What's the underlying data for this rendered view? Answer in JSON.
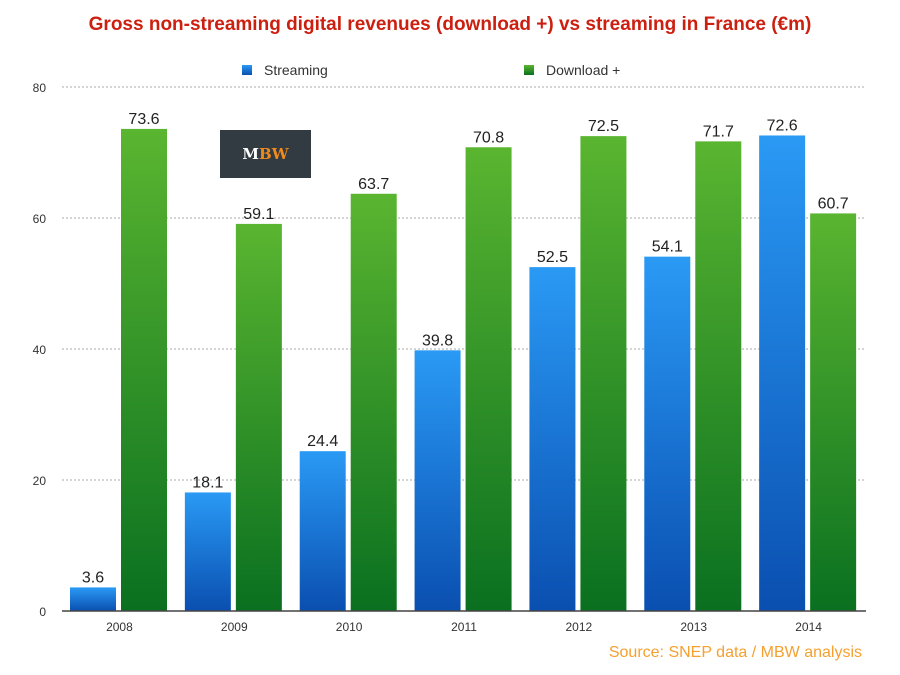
{
  "chart_data": {
    "type": "bar",
    "title": "Gross non-streaming digital revenues (download +) vs streaming in France (€m)",
    "categories": [
      "2008",
      "2009",
      "2010",
      "2011",
      "2012",
      "2013",
      "2014"
    ],
    "series": [
      {
        "name": "Streaming",
        "values": [
          3.6,
          18.1,
          24.4,
          39.8,
          52.5,
          54.1,
          72.6
        ],
        "color": "#1a7ae0"
      },
      {
        "name": "Download +",
        "values": [
          73.6,
          59.1,
          63.7,
          70.8,
          72.5,
          71.7,
          60.7
        ],
        "color": "#2f9a28"
      }
    ],
    "ylim": [
      0,
      80
    ],
    "yticks": [
      0,
      20,
      40,
      60,
      80
    ],
    "grid": true,
    "legend": "top",
    "xlabel": "",
    "ylabel": ""
  },
  "logo": {
    "m": "M",
    "bw": "BW"
  },
  "source": "Source: SNEP data  / MBW analysis"
}
